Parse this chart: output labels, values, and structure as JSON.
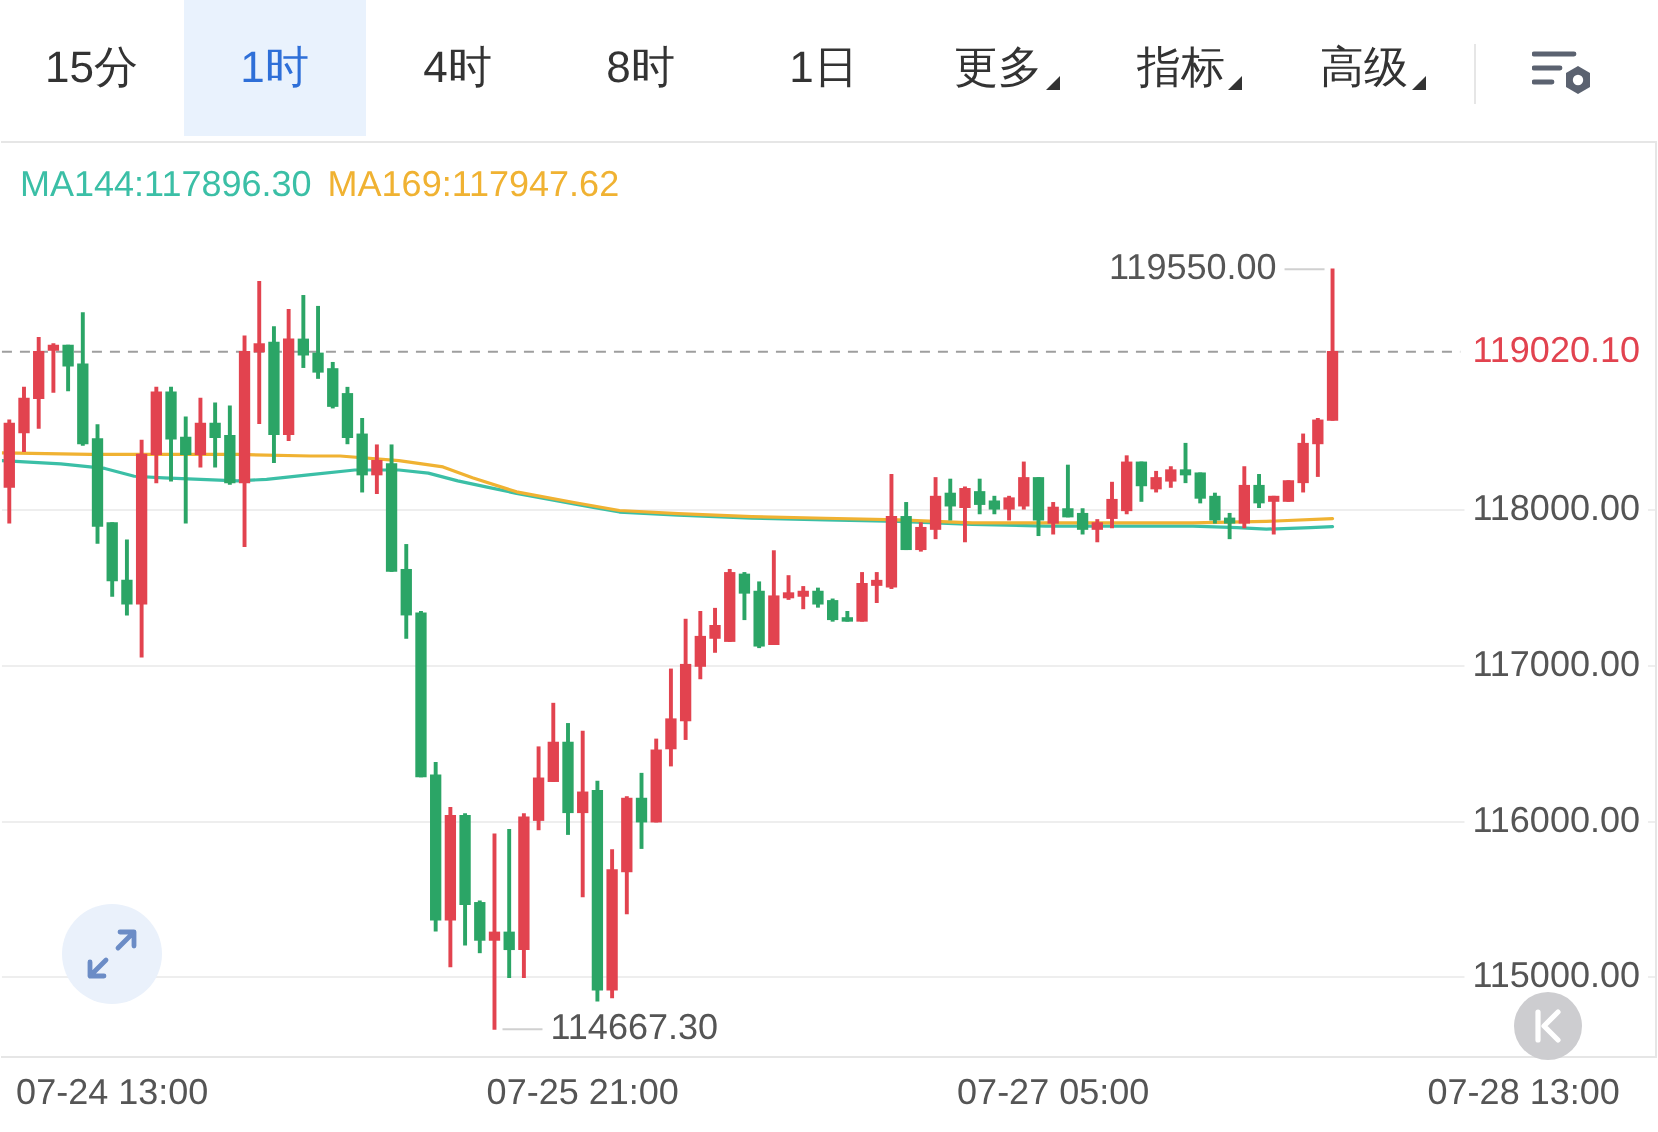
{
  "chart_data": {
    "type": "candlestick",
    "x": [
      "--07-24T06:00",
      "--07-24T07:00",
      "--07-24T08:00",
      "--07-24T09:00",
      "--07-24T10:00",
      "--07-24T11:00",
      "--07-24T12:00",
      "--07-24T13:00",
      "--07-24T14:00",
      "--07-24T15:00",
      "--07-24T16:00",
      "--07-24T17:00",
      "--07-24T18:00",
      "--07-24T19:00",
      "--07-24T20:00",
      "--07-24T21:00",
      "--07-24T22:00",
      "--07-24T23:00",
      "--07-25T00:00",
      "--07-25T01:00",
      "--07-25T02:00",
      "--07-25T03:00",
      "--07-25T04:00",
      "--07-25T05:00",
      "--07-25T06:00",
      "--07-25T07:00",
      "--07-25T08:00",
      "--07-25T09:00",
      "--07-25T10:00",
      "--07-25T11:00",
      "--07-25T12:00",
      "--07-25T13:00",
      "--07-25T14:00",
      "--07-25T15:00",
      "--07-25T16:00",
      "--07-25T17:00",
      "--07-25T18:00",
      "--07-25T19:00",
      "--07-25T20:00",
      "--07-25T21:00",
      "--07-25T22:00",
      "--07-25T23:00",
      "--07-26T00:00",
      "--07-26T01:00",
      "--07-26T02:00",
      "--07-26T03:00",
      "--07-26T04:00",
      "--07-26T05:00",
      "--07-26T06:00",
      "--07-26T07:00",
      "--07-26T08:00",
      "--07-26T09:00",
      "--07-26T10:00",
      "--07-26T11:00",
      "--07-26T12:00",
      "--07-26T13:00",
      "--07-26T14:00",
      "--07-26T15:00",
      "--07-26T16:00",
      "--07-26T17:00",
      "--07-26T18:00",
      "--07-26T19:00",
      "--07-26T20:00",
      "--07-26T21:00",
      "--07-26T22:00",
      "--07-26T23:00",
      "--07-27T00:00",
      "--07-27T01:00",
      "--07-27T02:00",
      "--07-27T03:00",
      "--07-27T04:00",
      "--07-27T05:00",
      "--07-27T06:00",
      "--07-27T07:00",
      "--07-27T08:00",
      "--07-27T09:00",
      "--07-27T10:00",
      "--07-27T11:00",
      "--07-27T12:00",
      "--07-27T13:00",
      "--07-27T14:00",
      "--07-27T15:00",
      "--07-27T16:00",
      "--07-27T17:00",
      "--07-27T18:00",
      "--07-27T19:00",
      "--07-27T20:00",
      "--07-27T21:00",
      "--07-27T22:00",
      "--07-27T23:00",
      "--07-28T00:00"
    ],
    "ohlc": [
      [
        118150,
        118580,
        117920,
        118560
      ],
      [
        118500,
        118790,
        118380,
        118720
      ],
      [
        118720,
        119110,
        118530,
        119020
      ],
      [
        119030,
        119070,
        118760,
        119060
      ],
      [
        119060,
        119060,
        118770,
        118930
      ],
      [
        118940,
        119270,
        118420,
        118430
      ],
      [
        118460,
        118550,
        117790,
        117900
      ],
      [
        117920,
        117920,
        117450,
        117550
      ],
      [
        117550,
        117810,
        117330,
        117400
      ],
      [
        117400,
        118450,
        117060,
        118360
      ],
      [
        118360,
        118790,
        118180,
        118760
      ],
      [
        118760,
        118790,
        118190,
        118460
      ],
      [
        118470,
        118600,
        117920,
        118360
      ],
      [
        118360,
        118720,
        118280,
        118560
      ],
      [
        118560,
        118690,
        118280,
        118470
      ],
      [
        118480,
        118670,
        118170,
        118180
      ],
      [
        118180,
        119120,
        117770,
        119020
      ],
      [
        119020,
        119470,
        118560,
        119070
      ],
      [
        119080,
        119180,
        118310,
        118490
      ],
      [
        118490,
        119290,
        118450,
        119100
      ],
      [
        119100,
        119380,
        118920,
        119000
      ],
      [
        119010,
        119310,
        118850,
        118890
      ],
      [
        118910,
        118950,
        118660,
        118670
      ],
      [
        118750,
        118790,
        118430,
        118470
      ],
      [
        118490,
        118590,
        118120,
        118230
      ],
      [
        118230,
        118420,
        118110,
        118320
      ],
      [
        118300,
        118420,
        117610,
        117610
      ],
      [
        117620,
        117780,
        117180,
        117330
      ],
      [
        117340,
        117350,
        116290,
        116290
      ],
      [
        116300,
        116380,
        115300,
        115370
      ],
      [
        115370,
        116090,
        115070,
        116040
      ],
      [
        116040,
        116050,
        115210,
        115470
      ],
      [
        115480,
        115490,
        115160,
        115240
      ],
      [
        115240,
        115920,
        114667.3,
        115290
      ],
      [
        115290,
        115950,
        115000,
        115180
      ],
      [
        115180,
        116050,
        115000,
        116030
      ],
      [
        116010,
        116480,
        115950,
        116280
      ],
      [
        116260,
        116760,
        116260,
        116510
      ],
      [
        116510,
        116630,
        115920,
        116060
      ],
      [
        116060,
        116580,
        115520,
        116190
      ],
      [
        116200,
        116260,
        114850,
        114920
      ],
      [
        114920,
        115820,
        114870,
        115690
      ],
      [
        115680,
        116160,
        115410,
        116150
      ],
      [
        116150,
        116310,
        115830,
        116000
      ],
      [
        116000,
        116530,
        116000,
        116460
      ],
      [
        116470,
        116980,
        116360,
        116660
      ],
      [
        116650,
        117300,
        116530,
        117010
      ],
      [
        117000,
        117350,
        116920,
        117190
      ],
      [
        117180,
        117370,
        117090,
        117260
      ],
      [
        117160,
        117620,
        117160,
        117600
      ],
      [
        117590,
        117600,
        117300,
        117470
      ],
      [
        117480,
        117540,
        117120,
        117130
      ],
      [
        117140,
        117740,
        117140,
        117450
      ],
      [
        117440,
        117580,
        117430,
        117470
      ],
      [
        117450,
        117510,
        117370,
        117480
      ],
      [
        117480,
        117500,
        117380,
        117400
      ],
      [
        117420,
        117430,
        117290,
        117300
      ],
      [
        117310,
        117350,
        117290,
        117290
      ],
      [
        117290,
        117600,
        117290,
        117530
      ],
      [
        117520,
        117600,
        117410,
        117550
      ],
      [
        117510,
        118230,
        117500,
        117960
      ],
      [
        117960,
        118050,
        117750,
        117750
      ],
      [
        117750,
        117920,
        117740,
        117890
      ],
      [
        117880,
        118210,
        117820,
        118090
      ],
      [
        118110,
        118200,
        117940,
        118030
      ],
      [
        118020,
        118150,
        117800,
        118140
      ],
      [
        118120,
        118200,
        117980,
        118040
      ],
      [
        118060,
        118090,
        117980,
        118010
      ],
      [
        118010,
        118090,
        117940,
        118080
      ],
      [
        118030,
        118310,
        118010,
        118210
      ],
      [
        118210,
        118210,
        117840,
        117940
      ],
      [
        117920,
        118050,
        117850,
        118020
      ],
      [
        118010,
        118290,
        117960,
        117960
      ],
      [
        117980,
        118010,
        117850,
        117880
      ],
      [
        117880,
        117940,
        117800,
        117920
      ],
      [
        117950,
        118180,
        117890,
        118070
      ],
      [
        118000,
        118350,
        117980,
        118310
      ],
      [
        118310,
        118310,
        118060,
        118160
      ],
      [
        118140,
        118250,
        118120,
        118210
      ],
      [
        118190,
        118280,
        118150,
        118260
      ],
      [
        118260,
        118430,
        118180,
        118230
      ],
      [
        118240,
        118240,
        118050,
        118080
      ],
      [
        118090,
        118110,
        117920,
        117940
      ],
      [
        117950,
        117980,
        117820,
        117920
      ],
      [
        117920,
        118280,
        117890,
        118160
      ],
      [
        118160,
        118230,
        118020,
        118050
      ],
      [
        118060,
        118090,
        117850,
        118090
      ],
      [
        118060,
        118190,
        118060,
        118190
      ],
      [
        118180,
        118490,
        118120,
        118430
      ],
      [
        118430,
        118590,
        118220,
        118580
      ],
      [
        118580,
        119550,
        118580,
        119020.1
      ]
    ],
    "colors": [
      "#e2434f",
      "#e2434f",
      "#e2434f",
      "#e2434f",
      "#2ba566",
      "#2ba566",
      "#2ba566",
      "#2ba566",
      "#2ba566",
      "#e2434f",
      "#e2434f",
      "#2ba566",
      "#2ba566",
      "#e2434f",
      "#2ba566",
      "#2ba566",
      "#e2434f",
      "#e2434f",
      "#2ba566",
      "#e2434f",
      "#2ba566",
      "#2ba566",
      "#2ba566",
      "#2ba566",
      "#2ba566",
      "#e2434f",
      "#2ba566",
      "#2ba566",
      "#2ba566",
      "#2ba566",
      "#e2434f",
      "#2ba566",
      "#2ba566",
      "#e2434f",
      "#2ba566",
      "#e2434f",
      "#e2434f",
      "#e2434f",
      "#2ba566",
      "#e2434f",
      "#2ba566",
      "#e2434f",
      "#e2434f",
      "#2ba566",
      "#e2434f",
      "#e2434f",
      "#e2434f",
      "#e2434f",
      "#e2434f",
      "#e2434f",
      "#2ba566",
      "#2ba566",
      "#e2434f",
      "#e2434f",
      "#e2434f",
      "#2ba566",
      "#2ba566",
      "#2ba566",
      "#e2434f",
      "#e2434f",
      "#e2434f",
      "#2ba566",
      "#e2434f",
      "#e2434f",
      "#2ba566",
      "#e2434f",
      "#2ba566",
      "#2ba566",
      "#e2434f",
      "#e2434f",
      "#2ba566",
      "#e2434f",
      "#2ba566",
      "#2ba566",
      "#e2434f",
      "#e2434f",
      "#e2434f",
      "#2ba566",
      "#e2434f",
      "#e2434f",
      "#2ba566",
      "#2ba566",
      "#2ba566",
      "#2ba566",
      "#e2434f",
      "#2ba566",
      "#e2434f",
      "#e2434f",
      "#e2434f",
      "#e2434f",
      "#e2434f"
    ],
    "series": [
      {
        "name": "MA144:117896.30",
        "type": "line",
        "color": "#3bbfa6",
        "x": [
          "--07-24T05:30",
          "--07-24T09:30",
          "--07-24T12:30",
          "--07-24T14:30",
          "--07-24T16:30",
          "--07-24T21:30",
          "--07-24T23:30",
          "--07-25T02:30",
          "--07-25T05:30",
          "--07-25T08:30",
          "--07-25T10:30",
          "--07-25T12:30",
          "--07-25T14:30",
          "--07-25T16:30",
          "--07-25T20:30",
          "--07-25T23:30",
          "--07-26T03:30",
          "--07-26T08:30",
          "--07-26T13:30",
          "--07-26T18:30",
          "--07-26T23:30",
          "--07-27T04:30",
          "--07-27T09:30",
          "--07-27T14:30",
          "--07-27T17:30",
          "--07-27T19:30",
          "--07-27T22:30",
          "--07-28T00:00"
        ],
        "values": [
          118320,
          118300,
          118270,
          118220,
          118210,
          118190,
          118200,
          118230,
          118260,
          118260,
          118240,
          118190,
          118150,
          118110,
          118040,
          117990,
          117970,
          117950,
          117940,
          117930,
          117910,
          117900,
          117900,
          117900,
          117890,
          117880,
          117890,
          117896.3
        ]
      },
      {
        "name": "MA169:117947.62",
        "type": "line",
        "color": "#f0b232",
        "x": [
          "--07-24T05:30",
          "--07-24T11:30",
          "--07-24T16:30",
          "--07-24T21:30",
          "--07-25T02:30",
          "--07-25T04:30",
          "--07-25T08:30",
          "--07-25T11:30",
          "--07-25T13:30",
          "--07-25T16:30",
          "--07-25T20:30",
          "--07-25T23:30",
          "--07-26T03:30",
          "--07-26T08:30",
          "--07-26T13:30",
          "--07-26T18:30",
          "--07-26T23:30",
          "--07-27T04:30",
          "--07-27T09:30",
          "--07-27T14:30",
          "--07-27T19:30",
          "--07-28T00:00"
        ],
        "values": [
          118370,
          118360,
          118360,
          118360,
          118350,
          118350,
          118320,
          118280,
          118210,
          118120,
          118050,
          118000,
          117980,
          117960,
          117950,
          117940,
          117920,
          117920,
          117920,
          117920,
          117930,
          117947.62
        ]
      }
    ],
    "xlim": [
      "--07-24T05:30",
      "--07-28T22:00"
    ],
    "xticks": [
      {
        "value": "--07-24T13:00",
        "label": "07-24 13:00"
      },
      {
        "value": "--07-25T21:00",
        "label": "07-25 21:00"
      },
      {
        "value": "--07-27T05:00",
        "label": "07-27 05:00"
      },
      {
        "value": "--07-28T13:00",
        "label": "07-28 13:00"
      }
    ],
    "ylim": [
      114490,
      120370
    ],
    "yticks": [
      {
        "value": 115000,
        "label": "115000.00"
      },
      {
        "value": 116000,
        "label": "116000.00"
      },
      {
        "value": 117000,
        "label": "117000.00"
      },
      {
        "value": 118000,
        "label": "118000.00"
      }
    ],
    "grid": "y",
    "legend": "top left",
    "ref_lines": [
      {
        "axis": "y",
        "value": 119020.1,
        "label": "119020.10",
        "color": "#9e9e9e",
        "line_style": "dashed"
      }
    ],
    "annotations": [
      "15分",
      "1时",
      "4时",
      "8时",
      "1日",
      "更多",
      "指标",
      "高级",
      {
        "text": "119550.00",
        "x": "--07-28T00:00",
        "y": 119550
      },
      {
        "text": "114667.30",
        "x": "--07-25T15:00",
        "y": 114667.3
      }
    ]
  }
}
